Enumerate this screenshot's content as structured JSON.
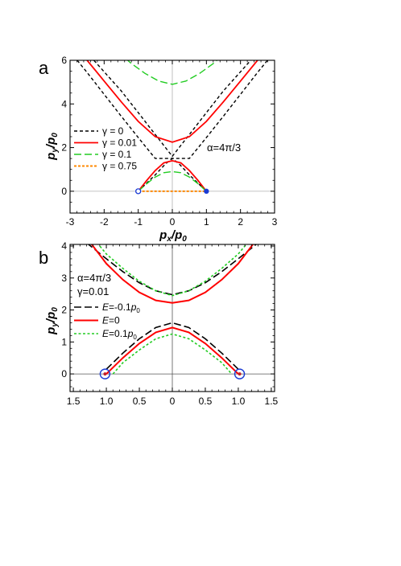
{
  "chart_data": [
    {
      "panel_label": "a",
      "type": "line",
      "xlim": [
        -3,
        3
      ],
      "ylim": [
        -1,
        6
      ],
      "xticks": [
        -3,
        -2,
        -1,
        0,
        1,
        2,
        3
      ],
      "yticks": [
        0,
        2,
        4,
        6
      ],
      "xlabel": {
        "main": "p",
        "sub": "x",
        "mid": "/p",
        "sub2": "0"
      },
      "ylabel": {
        "main": "p",
        "sub": "y",
        "mid": "/p",
        "sub2": "0"
      },
      "annotation": "α=4π/3",
      "legend_position": "left",
      "series": [
        {
          "name": "γ = 0",
          "color": "#000000",
          "dash": "4,3",
          "width": 1.4,
          "branches": [
            {
              "x": [
                -3,
                -2.5,
                -2,
                -1.5,
                -1,
                -0.5,
                0,
                0.5,
                1,
                1.5,
                2,
                2.5,
                3
              ],
              "y": [
                6.4,
                5.44,
                4.44,
                3.44,
                2.46,
                1.5,
                1.5,
                1.5,
                2.46,
                3.44,
                4.44,
                5.44,
                6.4
              ]
            },
            {
              "x": [
                -1,
                -0.5,
                -0.2,
                0,
                0.2,
                0.5,
                1
              ],
              "y": [
                0,
                0.75,
                1.25,
                1.5,
                1.25,
                0.75,
                0
              ]
            },
            {
              "x": [
                -2.3,
                -1.5,
                -1,
                -0.5,
                0,
                0.5,
                1,
                1.5,
                2.3
              ],
              "y": [
                6,
                4.6,
                3.6,
                2.6,
                1.6,
                2.6,
                3.6,
                4.6,
                6
              ]
            }
          ]
        },
        {
          "name": "γ = 0.01",
          "color": "#ff0000",
          "dash": "",
          "width": 1.8,
          "branches": [
            {
              "x": [
                -3,
                -2.5,
                -2,
                -1.5,
                -1,
                -0.5,
                0,
                0.5,
                1,
                1.5,
                2,
                2.5,
                3
              ],
              "y": [
                6.9,
                6.0,
                5.05,
                4.1,
                3.2,
                2.5,
                2.25,
                2.5,
                3.2,
                4.1,
                5.05,
                6.0,
                6.9
              ]
            },
            {
              "x": [
                -1,
                -0.75,
                -0.5,
                -0.25,
                0,
                0.25,
                0.5,
                0.75,
                1
              ],
              "y": [
                0,
                0.5,
                0.95,
                1.3,
                1.4,
                1.3,
                0.95,
                0.5,
                0
              ]
            }
          ]
        },
        {
          "name": "γ = 0.1",
          "color": "#22cc22",
          "dash": "9,4",
          "width": 1.4,
          "branches": [
            {
              "x": [
                -1.6,
                -1.2,
                -0.8,
                -0.4,
                0,
                0.4,
                0.8,
                1.2,
                1.6
              ],
              "y": [
                6.4,
                5.85,
                5.4,
                5.05,
                4.9,
                5.05,
                5.4,
                5.85,
                6.4
              ]
            },
            {
              "x": [
                -1,
                -0.75,
                -0.5,
                -0.25,
                0,
                0.25,
                0.5,
                0.75,
                1
              ],
              "y": [
                0,
                0.35,
                0.65,
                0.85,
                0.9,
                0.85,
                0.65,
                0.35,
                0
              ]
            }
          ]
        },
        {
          "name": "γ = 0.75",
          "color": "#ff8800",
          "dash": "3,2",
          "width": 2,
          "branches": [
            {
              "x": [
                -1,
                1
              ],
              "y": [
                0,
                0
              ]
            }
          ]
        }
      ],
      "markers": [
        {
          "x": -1,
          "y": 0,
          "style": "open",
          "color": "#1a3bd4"
        },
        {
          "x": 1,
          "y": 0,
          "style": "filled",
          "color": "#1a3bd4"
        }
      ]
    },
    {
      "panel_label": "b",
      "type": "line",
      "xlim": [
        -1.55,
        1.55
      ],
      "ylim": [
        -0.55,
        4.05
      ],
      "xticks": [
        -1.5,
        -1.0,
        -0.5,
        0,
        0.5,
        1.0,
        1.5
      ],
      "xticklabels": [
        "1.5",
        "1.0",
        "0.5",
        "0",
        "0.5",
        "1.0",
        "1.5"
      ],
      "yticks": [
        0,
        1,
        2,
        3,
        4
      ],
      "ylabel": {
        "main": "p",
        "sub": "y",
        "mid": "/p",
        "sub2": "0"
      },
      "annotations": [
        "α=4π/3",
        "γ=0.01"
      ],
      "legend_position": "left",
      "series": [
        {
          "name": "E=-0.1p0",
          "legend": {
            "italic": "E",
            "text": "=-0.1",
            "p": "p",
            "sub": "0"
          },
          "color": "#000000",
          "dash": "9,4",
          "width": 1.6,
          "branches": [
            {
              "x": [
                -1.3,
                -1.0,
                -0.75,
                -0.5,
                -0.25,
                0,
                0.25,
                0.5,
                0.75,
                1.0,
                1.3
              ],
              "y": [
                4.1,
                3.6,
                3.2,
                2.85,
                2.6,
                2.48,
                2.6,
                2.85,
                3.2,
                3.6,
                4.1
              ]
            },
            {
              "x": [
                -1.0,
                -0.75,
                -0.5,
                -0.25,
                0,
                0.25,
                0.5,
                0.75,
                1.0
              ],
              "y": [
                0.15,
                0.65,
                1.1,
                1.45,
                1.6,
                1.45,
                1.1,
                0.65,
                0.15
              ]
            }
          ]
        },
        {
          "name": "E=0",
          "legend": {
            "italic": "E",
            "text": "=0",
            "p": "",
            "sub": ""
          },
          "color": "#ff0000",
          "dash": "",
          "width": 2,
          "branches": [
            {
              "x": [
                -1.24,
                -1.0,
                -0.75,
                -0.5,
                -0.25,
                0,
                0.25,
                0.5,
                0.75,
                1.0,
                1.24
              ],
              "y": [
                4.1,
                3.45,
                2.95,
                2.55,
                2.3,
                2.22,
                2.3,
                2.55,
                2.95,
                3.45,
                4.1
              ]
            },
            {
              "x": [
                -1.0,
                -0.75,
                -0.5,
                -0.25,
                0,
                0.25,
                0.5,
                0.75,
                1.0
              ],
              "y": [
                0,
                0.5,
                0.95,
                1.3,
                1.45,
                1.3,
                0.95,
                0.5,
                0
              ]
            }
          ]
        },
        {
          "name": "E=0.1p0",
          "legend": {
            "italic": "E",
            "text": "=0.1",
            "p": "p",
            "sub": "0"
          },
          "color": "#22cc22",
          "dash": "3,2.5",
          "width": 1.6,
          "branches": [
            {
              "x": [
                -1.14,
                -1.0,
                -0.75,
                -0.5,
                -0.25,
                0,
                0.25,
                0.5,
                0.75,
                1.0,
                1.14
              ],
              "y": [
                4.1,
                3.75,
                3.3,
                2.9,
                2.6,
                2.45,
                2.6,
                2.9,
                3.3,
                3.75,
                4.1
              ]
            },
            {
              "x": [
                -0.9,
                -0.75,
                -0.5,
                -0.25,
                0,
                0.25,
                0.5,
                0.75,
                0.9
              ],
              "y": [
                0,
                0.35,
                0.75,
                1.1,
                1.25,
                1.1,
                0.75,
                0.35,
                0
              ]
            }
          ]
        }
      ],
      "markers": [
        {
          "x": -1.02,
          "y": 0,
          "style": "open-ring-dot",
          "color": "#1a3bd4"
        },
        {
          "x": 1.02,
          "y": 0,
          "style": "open-ring-dot",
          "color": "#1a3bd4"
        }
      ]
    }
  ]
}
